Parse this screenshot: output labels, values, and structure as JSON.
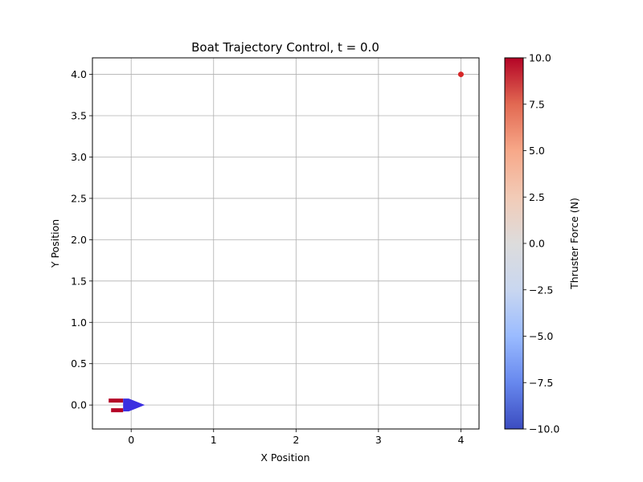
{
  "chart_data": {
    "type": "scatter",
    "title": "Boat Trajectory Control, t = 0.0",
    "xlabel": "X Position",
    "ylabel": "Y Position",
    "xlim": [
      -0.47,
      4.22
    ],
    "ylim": [
      -0.29,
      4.2
    ],
    "xticks": [
      0,
      1,
      2,
      3,
      4
    ],
    "xtick_labels": [
      "0",
      "1",
      "2",
      "3",
      "4"
    ],
    "yticks": [
      0.0,
      0.5,
      1.0,
      1.5,
      2.0,
      2.5,
      3.0,
      3.5,
      4.0
    ],
    "ytick_labels": [
      "0.0",
      "0.5",
      "1.0",
      "1.5",
      "2.0",
      "2.5",
      "3.0",
      "3.5",
      "4.0"
    ],
    "grid": true,
    "target": {
      "x": 4.0,
      "y": 4.0,
      "color": "#d62728"
    },
    "boat": {
      "x": 0.0,
      "y": 0.0,
      "heading_deg": 0,
      "color": "#3b2fe0"
    },
    "thrusters": [
      {
        "name": "left",
        "force": 10.0
      },
      {
        "name": "right",
        "force": 10.0
      }
    ],
    "colorbar": {
      "label": "Thruster Force (N)",
      "colormap": "coolwarm",
      "range": [
        -10.0,
        10.0
      ],
      "ticks": [
        10.0,
        7.5,
        5.0,
        2.5,
        0.0,
        -2.5,
        -5.0,
        -7.5,
        -10.0
      ],
      "tick_labels": [
        "10.0",
        "7.5",
        "5.0",
        "2.5",
        "0.0",
        "−2.5",
        "−5.0",
        "−7.5",
        "−10.0"
      ],
      "stops": [
        "#3b4cc0",
        "#6788ee",
        "#9abbff",
        "#c9d7f0",
        "#dddcdc",
        "#f2cbb7",
        "#f7a889",
        "#e26952",
        "#b40426"
      ]
    }
  }
}
